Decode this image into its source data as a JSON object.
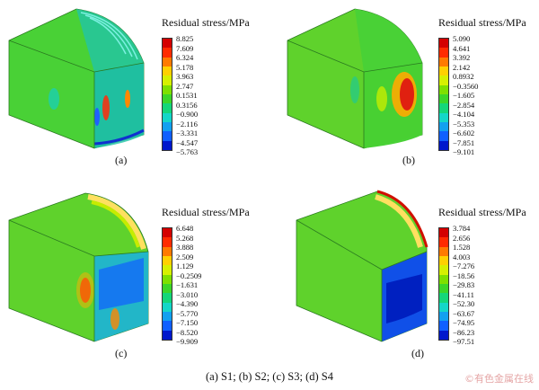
{
  "legend_title": "Residual stress/MPa",
  "colors": [
    "#d40000",
    "#ff2b00",
    "#ff7a00",
    "#ffd000",
    "#d6f000",
    "#7ee000",
    "#3bd62a",
    "#14d67a",
    "#14d6c8",
    "#12a0f0",
    "#1060ff",
    "#0018cc"
  ],
  "panels": [
    {
      "label": "(a)",
      "values": [
        "8.825",
        "7.609",
        "6.324",
        "5.178",
        "3.963",
        "2.747",
        "0.1531",
        "0.3156",
        "−0.900",
        "−2.116",
        "−3.331",
        "−4.547",
        "−5.763"
      ]
    },
    {
      "label": "(b)",
      "values": [
        "5.090",
        "4.641",
        "3.392",
        "2.142",
        "0.8932",
        "−0.3560",
        "−1.605",
        "−2.854",
        "−4.104",
        "−5.353",
        "−6.602",
        "−7.851",
        "−9.101"
      ]
    },
    {
      "label": "(c)",
      "values": [
        "6.648",
        "5.268",
        "3.888",
        "2.509",
        "1.129",
        "−0.2509",
        "−1.631",
        "−3.010",
        "−4.390",
        "−5.770",
        "−7.150",
        "−8.520",
        "−9.909"
      ]
    },
    {
      "label": "(d)",
      "values": [
        "3.784",
        "2.656",
        "1.528",
        "4.003",
        "−7.276",
        "−18.56",
        "−29.83",
        "−41.11",
        "−52.30",
        "−63.67",
        "−74.95",
        "−86.23",
        "−97.51"
      ]
    }
  ],
  "caption": "(a) S1; (b) S2; (c) S3; (d) S4",
  "watermark": "©有色金属在线"
}
